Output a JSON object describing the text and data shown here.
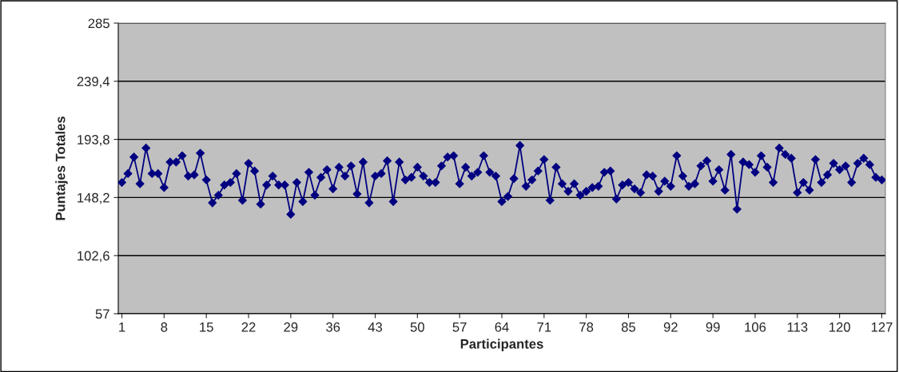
{
  "chart_data": {
    "type": "line",
    "xlabel": "Participantes",
    "ylabel": "Puntajes Totales",
    "categories": [
      "1",
      null,
      null,
      null,
      null,
      null,
      null,
      "8",
      null,
      null,
      null,
      null,
      null,
      null,
      "15",
      null,
      null,
      null,
      null,
      null,
      null,
      "22",
      null,
      null,
      null,
      null,
      null,
      null,
      "29",
      null,
      null,
      null,
      null,
      null,
      null,
      "36",
      null,
      null,
      null,
      null,
      null,
      null,
      "43",
      null,
      null,
      null,
      null,
      null,
      null,
      "50",
      null,
      null,
      null,
      null,
      null,
      null,
      "57",
      null,
      null,
      null,
      null,
      null,
      null,
      "64",
      null,
      null,
      null,
      null,
      null,
      null,
      "71",
      null,
      null,
      null,
      null,
      null,
      null,
      "78",
      null,
      null,
      null,
      null,
      null,
      null,
      "85",
      null,
      null,
      null,
      null,
      null,
      null,
      "92",
      null,
      null,
      null,
      null,
      null,
      null,
      "99",
      null,
      null,
      null,
      null,
      null,
      null,
      "106",
      null,
      null,
      null,
      null,
      null,
      null,
      "113",
      null,
      null,
      null,
      null,
      null,
      null,
      "120",
      null,
      null,
      null,
      null,
      null,
      null,
      "127"
    ],
    "series": [
      {
        "color": "#000080",
        "values": [
          160,
          167,
          180,
          159,
          187,
          167,
          167,
          156,
          176,
          176,
          181,
          165,
          166,
          183,
          162,
          144,
          150,
          158,
          160,
          167,
          146,
          175,
          169,
          143,
          158,
          165,
          158,
          158,
          135,
          160,
          145,
          168,
          150,
          164,
          170,
          155,
          172,
          165,
          173,
          151,
          176,
          144,
          165,
          167,
          177,
          145,
          176,
          162,
          164,
          172,
          165,
          160,
          160,
          173,
          180,
          181,
          159,
          172,
          165,
          168,
          181,
          168,
          165,
          145,
          149,
          163,
          189,
          157,
          162,
          169,
          178,
          146,
          172,
          159,
          153,
          159,
          150,
          153,
          156,
          157,
          168,
          169,
          147,
          158,
          160,
          155,
          152,
          166,
          165,
          153,
          161,
          157,
          181,
          165,
          157,
          159,
          173,
          177,
          161,
          170,
          154,
          182,
          139,
          176,
          174,
          168,
          181,
          172,
          160,
          187,
          182,
          179,
          152,
          160,
          154,
          178,
          160,
          166,
          175,
          170,
          173,
          160,
          175,
          179,
          174,
          164,
          162
        ]
      }
    ],
    "ylim": [
      57,
      285
    ],
    "yticks": [
      57,
      {
        "value": 102.6,
        "label": "102,6"
      },
      {
        "value": 148.2,
        "label": "148,2"
      },
      {
        "value": 193.8,
        "label": "193,8"
      },
      {
        "value": 239.4,
        "label": "239,4"
      },
      285
    ],
    "grid": "y",
    "marker": "diamond",
    "line_style": "solid"
  }
}
